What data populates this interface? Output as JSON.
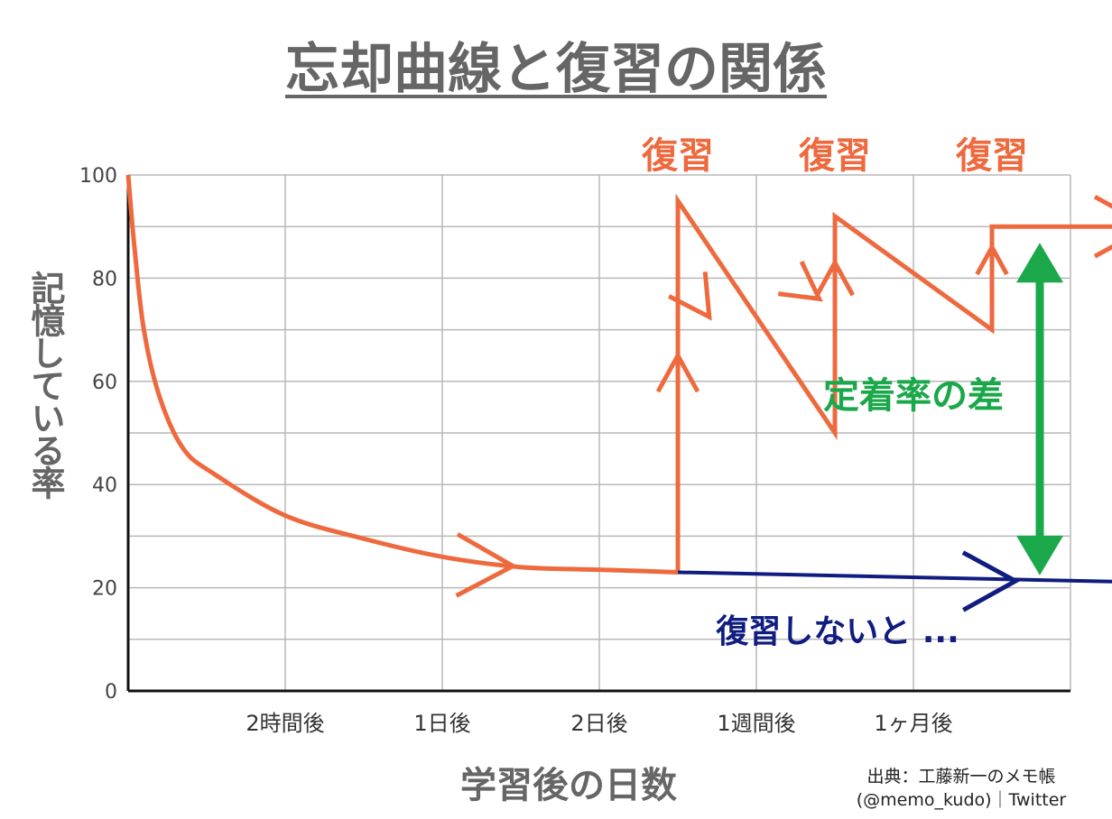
{
  "title": "忘却曲線と復習の関係",
  "source": {
    "line1": "出典：工藤新一のメモ帳",
    "line2": "(@memo_kudo)｜Twitter"
  },
  "chart_data": {
    "type": "line",
    "title": "忘却曲線と復習の関係",
    "xlabel": "学習後の日数",
    "ylabel": "記憶している率",
    "ylim": [
      0,
      100
    ],
    "yticks": [
      0,
      20,
      40,
      60,
      80,
      100
    ],
    "categories": [
      "2時間後",
      "1日後",
      "2日後",
      "1週間後",
      "1ヶ月後"
    ],
    "grid": true,
    "colors": {
      "forgetting": "#ee6a3e",
      "review": "#ee6a3e",
      "no_review": "#101c80",
      "gap": "#1aa84a",
      "text_gray": "#666666"
    },
    "series": [
      {
        "name": "",
        "color": "#ee6a3e",
        "points": [
          [
            0,
            100
          ],
          [
            0.04,
            86
          ],
          [
            0.1,
            70
          ],
          [
            0.2,
            57
          ],
          [
            0.35,
            47
          ],
          [
            0.55,
            42
          ],
          [
            1,
            34
          ],
          [
            1.5,
            29.5
          ],
          [
            2,
            26
          ],
          [
            2.5,
            24
          ],
          [
            3,
            23.5
          ],
          [
            3.3,
            23.2
          ],
          [
            3.5,
            23
          ]
        ]
      },
      {
        "name": "",
        "color": "#ee6a3e",
        "points": [
          [
            3.5,
            23
          ],
          [
            3.5,
            95
          ],
          [
            4.5,
            50
          ],
          [
            4.5,
            92
          ],
          [
            5.5,
            70
          ],
          [
            5.5,
            90
          ],
          [
            6.55,
            90
          ]
        ]
      },
      {
        "name": "",
        "color": "#101c80",
        "points": [
          [
            3.5,
            23
          ],
          [
            6.55,
            21
          ]
        ]
      }
    ],
    "annotations": [
      {
        "text": "復習",
        "x": 3.5
      },
      {
        "text": "復習",
        "x": 4.5
      },
      {
        "text": "復習",
        "x": 5.5
      },
      {
        "text": "定着率の差",
        "from": 21,
        "to": 90
      },
      {
        "text": "復習しないと ..."
      }
    ]
  }
}
